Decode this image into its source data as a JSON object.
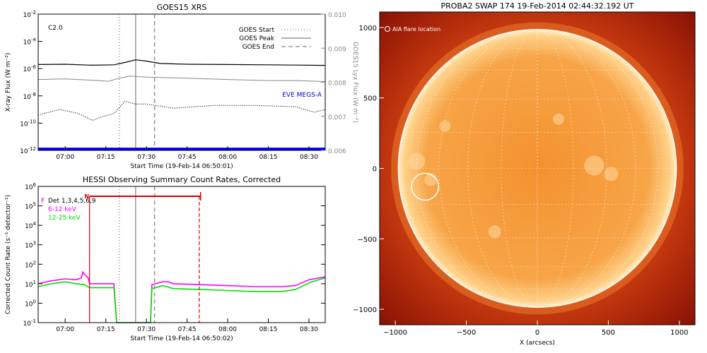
{
  "chart_data": [
    {
      "id": "goes",
      "type": "line",
      "title": "GOES15 XRS",
      "xlabel": "Start Time (19-Feb-14 06:50:01)",
      "ylabel": "X-ray Flux (W m⁻²)",
      "y2label": "GOES15 Lyx Flux (W m⁻²)",
      "x_ticks": [
        "07:00",
        "07:15",
        "07:30",
        "07:45",
        "08:00",
        "08:15",
        "08:30"
      ],
      "x_tick_minutes": [
        420,
        435,
        450,
        465,
        480,
        495,
        510
      ],
      "xlim_minutes": [
        410.02,
        516
      ],
      "y_scale": "log",
      "ylim_exp": [
        -12,
        -2
      ],
      "y_ticks": [
        {
          "exp": -2,
          "base": "10",
          "sup": "-2"
        },
        {
          "exp": -4,
          "base": "10",
          "sup": "-4"
        },
        {
          "exp": -6,
          "base": "10",
          "sup": "-6"
        },
        {
          "exp": -8,
          "base": "10",
          "sup": "-8"
        },
        {
          "exp": -10,
          "base": "10",
          "sup": "-10"
        },
        {
          "exp": -12,
          "base": "10",
          "sup": "-12"
        }
      ],
      "y2lim": [
        0.006,
        0.01
      ],
      "y2_ticks": [
        "0.010",
        "0.009",
        "0.008",
        "0.007",
        "0.006"
      ],
      "y2_tick_values": [
        0.01,
        0.009,
        0.008,
        0.007,
        0.006
      ],
      "annotation": "C2.0",
      "events": [
        {
          "name": "GOES Start",
          "minute": 440,
          "style": "dotted"
        },
        {
          "name": "GOES Peak",
          "minute": 446,
          "style": "solid"
        },
        {
          "name": "GOES End",
          "minute": 453,
          "style": "dashed"
        }
      ],
      "instrument_label": "EVE MEGS-A",
      "series": [
        {
          "style": "solid-black",
          "x": [
            410,
            420,
            430,
            438,
            442,
            446,
            450,
            455,
            465,
            480,
            495,
            505,
            516
          ],
          "log_y": [
            -5.7,
            -5.68,
            -5.75,
            -5.72,
            -5.55,
            -5.35,
            -5.45,
            -5.62,
            -5.68,
            -5.7,
            -5.72,
            -5.74,
            -5.76
          ]
        },
        {
          "style": "gray-axis2",
          "x": [
            410,
            420,
            430,
            436,
            440,
            444,
            450,
            465,
            480,
            495,
            505,
            516
          ],
          "y": [
            0.00808,
            0.0081,
            0.00806,
            0.00803,
            0.00812,
            0.00818,
            0.00815,
            0.00812,
            0.00808,
            0.00805,
            0.00805,
            0.00802
          ]
        },
        {
          "style": "dotted-black",
          "x": [
            410,
            418,
            425,
            430,
            434,
            438,
            442,
            446,
            450,
            460,
            475,
            490,
            505,
            512,
            516
          ],
          "log_y": [
            -9.4,
            -9.0,
            -9.3,
            -9.8,
            -9.5,
            -9.3,
            -8.4,
            -8.6,
            -8.6,
            -8.9,
            -8.7,
            -8.7,
            -8.8,
            -9.2,
            -9.0
          ]
        },
        {
          "style": "blue-thick",
          "x": [
            410,
            516
          ],
          "log_y": [
            -11.9,
            -11.9
          ]
        }
      ]
    },
    {
      "id": "hessi",
      "type": "line",
      "title": "HESSI Observing Summary Count Rates, Corrected",
      "xlabel": "Start Time (19-Feb-14 06:50:02)",
      "ylabel": "Corrected Count Rate (s⁻¹ detector⁻¹)",
      "x_ticks": [
        "07:00",
        "07:15",
        "07:30",
        "07:45",
        "08:00",
        "08:15",
        "08:30"
      ],
      "x_tick_minutes": [
        420,
        435,
        450,
        465,
        480,
        495,
        510
      ],
      "xlim_minutes": [
        410.03,
        516
      ],
      "y_scale": "log",
      "ylim_exp": [
        -1,
        6
      ],
      "y_ticks": [
        {
          "exp": 6,
          "base": "10",
          "sup": "6"
        },
        {
          "exp": 5,
          "base": "10",
          "sup": "5"
        },
        {
          "exp": 4,
          "base": "10",
          "sup": "4"
        },
        {
          "exp": 3,
          "base": "10",
          "sup": "3"
        },
        {
          "exp": 2,
          "base": "10",
          "sup": "2"
        },
        {
          "exp": 1,
          "base": "10",
          "sup": "1"
        },
        {
          "exp": 0,
          "base": "10",
          "sup": "0"
        },
        {
          "exp": -1,
          "base": "10",
          "sup": "-1"
        }
      ],
      "legend": [
        {
          "label": "Det 1,3,4,5,6,9",
          "color": "#000000",
          "flag": "F",
          "flag_color": "#cc00cc"
        },
        {
          "label": "6-12 keV",
          "color": "#ff00ff"
        },
        {
          "label": "12-25 keV",
          "color": "#00e000"
        }
      ],
      "flag_label": "N",
      "night_interval_minutes": [
        429,
        470
      ],
      "events": [
        {
          "name": "GOES Start",
          "minute": 440,
          "style": "dotted"
        },
        {
          "name": "GOES Peak",
          "minute": 446,
          "style": "solid"
        },
        {
          "name": "GOES End",
          "minute": 453,
          "style": "dashed"
        }
      ],
      "red_lines": [
        {
          "minute": 429,
          "style": "solid"
        },
        {
          "minute": 469.5,
          "style": "dashed"
        }
      ],
      "series": [
        {
          "name": "6-12 keV",
          "color": "#ff00ff",
          "x": [
            410,
            415,
            420,
            424,
            426,
            426.5,
            427,
            428.5,
            429,
            438,
            439,
            451.5,
            452,
            456,
            458,
            460,
            470,
            480,
            490,
            500,
            505,
            510,
            516
          ],
          "log_y": [
            1.0,
            1.15,
            1.25,
            1.2,
            1.3,
            1.6,
            1.5,
            1.3,
            1.0,
            1.0,
            -1.0,
            -1.0,
            0.95,
            1.1,
            1.1,
            1.0,
            0.95,
            0.9,
            0.85,
            0.85,
            0.9,
            1.2,
            1.35
          ]
        },
        {
          "name": "12-25 keV",
          "color": "#00e000",
          "x": [
            410,
            415,
            420,
            424,
            427,
            429,
            438,
            439,
            451.5,
            452,
            456,
            460,
            470,
            480,
            490,
            500,
            505,
            510,
            516
          ],
          "log_y": [
            0.85,
            1.0,
            1.1,
            1.0,
            0.95,
            0.8,
            0.8,
            -1.0,
            -1.0,
            0.75,
            0.9,
            0.75,
            0.7,
            0.65,
            0.6,
            0.6,
            0.7,
            1.05,
            1.3
          ]
        }
      ]
    },
    {
      "id": "swap",
      "type": "image",
      "title": "PROBA2 SWAP 174  19-Feb-2014 02:44:32.192 UT",
      "xlabel": "X (arcsecs)",
      "x_ticks": [
        -1000,
        -500,
        0,
        500,
        1000
      ],
      "y_ticks": [
        1000,
        500,
        0,
        -500,
        -1000
      ],
      "xlim": [
        -1110,
        1110
      ],
      "ylim": [
        -1110,
        1110
      ],
      "annotation": "AIA flare location",
      "flare_location": {
        "x": -790,
        "y": -130,
        "r": 95
      },
      "solar_radius_arcsec": 980
    }
  ]
}
